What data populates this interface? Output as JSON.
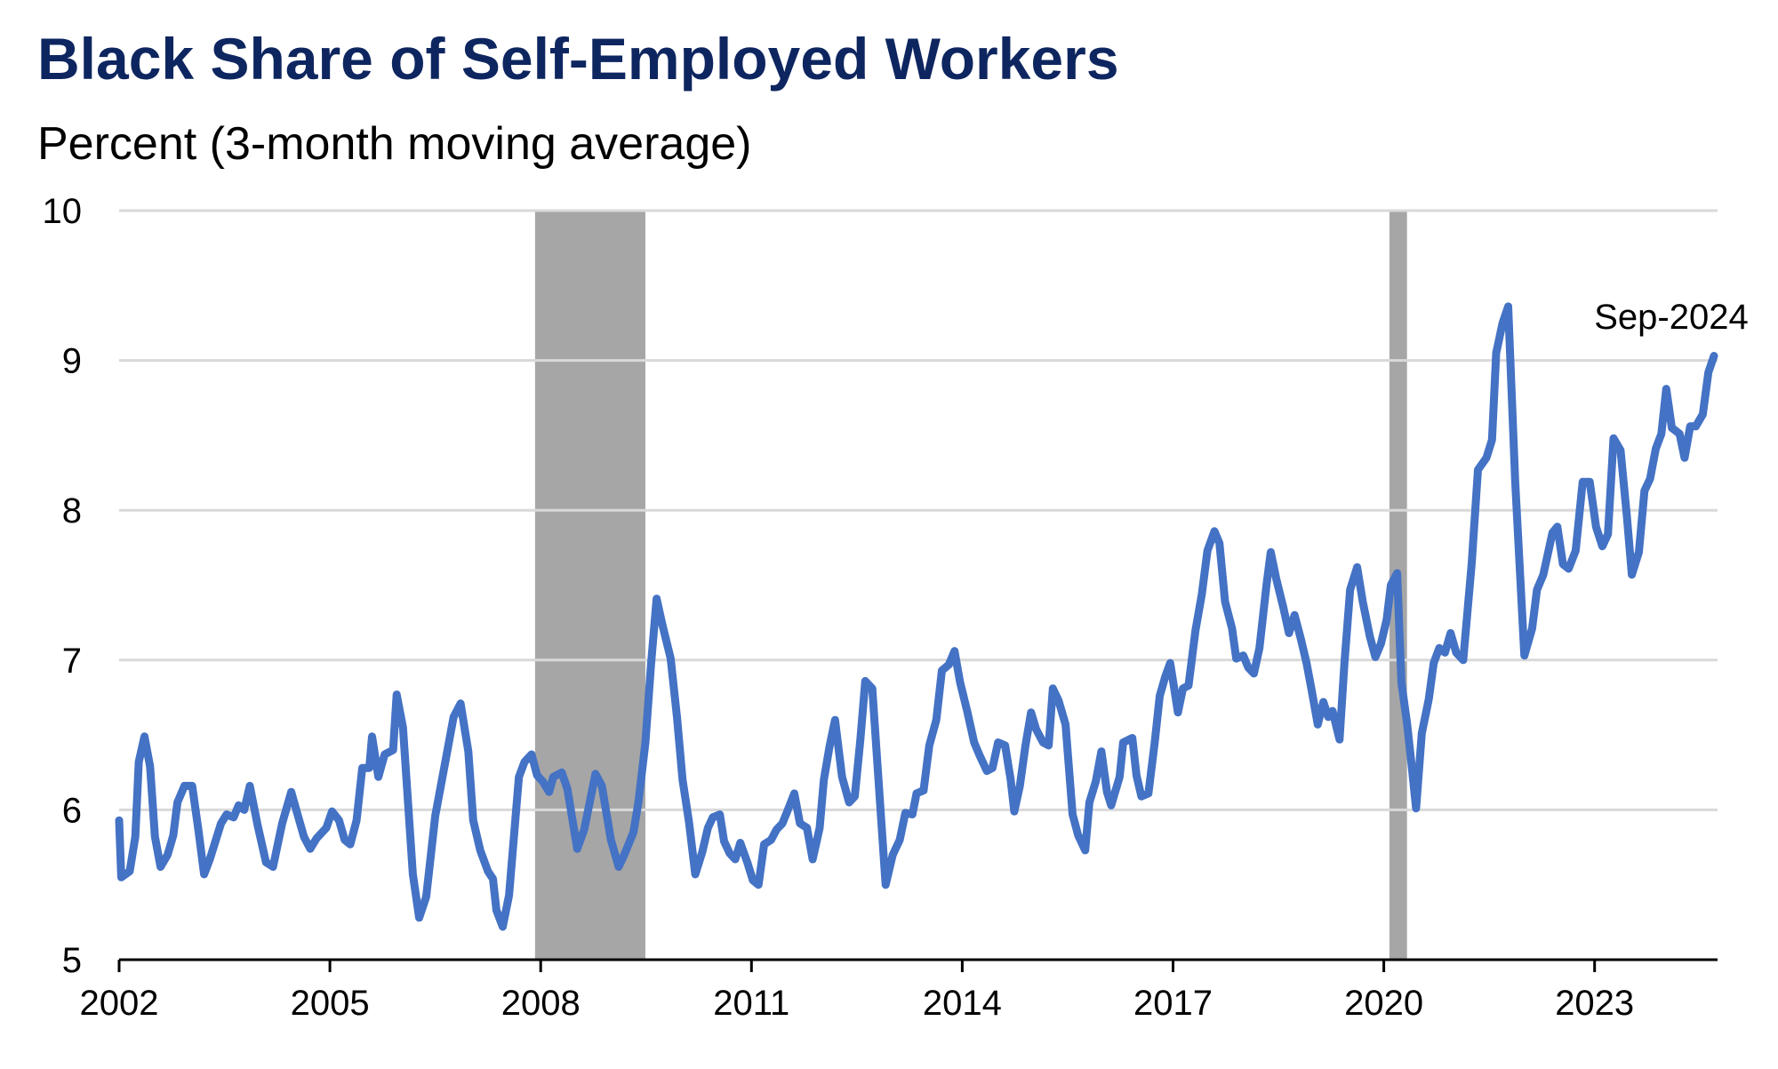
{
  "chart_data": {
    "type": "line",
    "title": "Black Share of Self-Employed Workers",
    "subtitle": "Percent (3-month moving average)",
    "xlabel": "",
    "ylabel": "",
    "xlim": [
      2002,
      2024.75
    ],
    "ylim": [
      5,
      10
    ],
    "x_ticks": [
      "2002",
      "2005",
      "2008",
      "2011",
      "2014",
      "2017",
      "2020",
      "2023"
    ],
    "y_ticks": [
      "5",
      "6",
      "7",
      "8",
      "9",
      "10"
    ],
    "grid": "horizontal",
    "annotation": "Sep-2024",
    "colors": {
      "line": "#4472c4",
      "recession": "#a6a6a6",
      "grid": "#d9d9d9",
      "title": "#0e2660"
    },
    "recessions": [
      [
        2007.92,
        2009.49
      ],
      [
        2020.08,
        2020.33
      ]
    ],
    "series": [
      {
        "x": [
          2002.0,
          2002.03,
          2002.15,
          2002.23,
          2002.28,
          2002.36,
          2002.44,
          2002.51,
          2002.59,
          2002.69,
          2002.77,
          2002.83,
          2002.93,
          2003.04,
          2003.13,
          2003.21,
          2003.29,
          2003.45,
          2003.53,
          2003.63,
          2003.7,
          2003.78,
          2003.86,
          2003.97,
          2004.09,
          2004.19,
          2004.32,
          2004.45,
          2004.54,
          2004.63,
          2004.72,
          2004.81,
          2004.95,
          2005.03,
          2005.13,
          2005.21,
          2005.29,
          2005.38,
          2005.46,
          2005.56,
          2005.6,
          2005.69,
          2005.78,
          2005.9,
          2005.95,
          2006.04,
          2006.18,
          2006.27,
          2006.37,
          2006.5,
          2006.65,
          2006.76,
          2006.86,
          2006.97,
          2007.04,
          2007.14,
          2007.25,
          2007.32,
          2007.37,
          2007.46,
          2007.55,
          2007.69,
          2007.77,
          2007.87,
          2007.95,
          2008.03,
          2008.12,
          2008.18,
          2008.3,
          2008.38,
          2008.52,
          2008.62,
          2008.78,
          2008.87,
          2009.0,
          2009.11,
          2009.19,
          2009.32,
          2009.39,
          2009.49,
          2009.57,
          2009.65,
          2009.73,
          2009.85,
          2009.94,
          2010.02,
          2010.11,
          2010.2,
          2010.3,
          2010.38,
          2010.45,
          2010.55,
          2010.61,
          2010.69,
          2010.77,
          2010.84,
          2010.94,
          2011.02,
          2011.1,
          2011.18,
          2011.28,
          2011.36,
          2011.44,
          2011.51,
          2011.61,
          2011.69,
          2011.79,
          2011.87,
          2011.97,
          2012.03,
          2012.11,
          2012.19,
          2012.29,
          2012.39,
          2012.47,
          2012.55,
          2012.62,
          2012.72,
          2012.83,
          2012.91,
          2013.01,
          2013.11,
          2013.19,
          2013.29,
          2013.35,
          2013.45,
          2013.53,
          2013.63,
          2013.71,
          2013.81,
          2013.89,
          2013.97,
          2014.07,
          2014.17,
          2014.25,
          2014.35,
          2014.43,
          2014.51,
          2014.61,
          2014.69,
          2014.74,
          2014.82,
          2014.9,
          2014.98,
          2015.05,
          2015.15,
          2015.23,
          2015.29,
          2015.37,
          2015.47,
          2015.57,
          2015.65,
          2015.75,
          2015.81,
          2015.9,
          2015.98,
          2016.06,
          2016.12,
          2016.24,
          2016.29,
          2016.42,
          2016.48,
          2016.55,
          2016.65,
          2016.74,
          2016.81,
          2016.89,
          2016.96,
          2017.02,
          2017.07,
          2017.14,
          2017.22,
          2017.32,
          2017.41,
          2017.49,
          2017.59,
          2017.66,
          2017.74,
          2017.84,
          2017.9,
          2018.0,
          2018.07,
          2018.15,
          2018.23,
          2018.33,
          2018.39,
          2018.47,
          2018.57,
          2018.65,
          2018.73,
          2018.82,
          2018.9,
          2018.98,
          2019.06,
          2019.14,
          2019.21,
          2019.27,
          2019.37,
          2019.44,
          2019.52,
          2019.62,
          2019.7,
          2019.8,
          2019.88,
          2019.96,
          2020.04,
          2020.1,
          2020.19,
          2020.25,
          2020.33,
          2020.4,
          2020.46,
          2020.54,
          2020.64,
          2020.71,
          2020.79,
          2020.87,
          2020.95,
          2021.03,
          2021.13,
          2021.25,
          2021.34,
          2021.46,
          2021.54,
          2021.6,
          2021.69,
          2021.77,
          2021.87,
          2022.0,
          2022.11,
          2022.18,
          2022.27,
          2022.4,
          2022.47,
          2022.55,
          2022.63,
          2022.73,
          2022.83,
          2022.93,
          2023.02,
          2023.11,
          2023.19,
          2023.27,
          2023.37,
          2023.46,
          2023.53,
          2023.63,
          2023.71,
          2023.79,
          2023.87,
          2023.95,
          2024.02,
          2024.1,
          2024.21,
          2024.28,
          2024.36,
          2024.44,
          2024.54,
          2024.62,
          2024.7
        ],
        "y": [
          5.93,
          5.55,
          5.59,
          5.82,
          6.32,
          6.49,
          6.29,
          5.82,
          5.62,
          5.7,
          5.83,
          6.05,
          6.16,
          6.16,
          5.86,
          5.57,
          5.67,
          5.91,
          5.97,
          5.95,
          6.03,
          6.0,
          6.16,
          5.9,
          5.65,
          5.62,
          5.91,
          6.12,
          5.97,
          5.82,
          5.74,
          5.81,
          5.88,
          5.99,
          5.93,
          5.8,
          5.77,
          5.93,
          6.28,
          6.28,
          6.49,
          6.22,
          6.37,
          6.4,
          6.77,
          6.55,
          5.57,
          5.28,
          5.42,
          5.96,
          6.34,
          6.62,
          6.71,
          6.39,
          5.93,
          5.73,
          5.59,
          5.54,
          5.33,
          5.22,
          5.43,
          6.22,
          6.32,
          6.37,
          6.23,
          6.19,
          6.12,
          6.22,
          6.25,
          6.14,
          5.74,
          5.87,
          6.24,
          6.16,
          5.8,
          5.62,
          5.7,
          5.85,
          6.05,
          6.45,
          6.97,
          7.41,
          7.24,
          7.01,
          6.62,
          6.2,
          5.92,
          5.57,
          5.72,
          5.88,
          5.95,
          5.97,
          5.79,
          5.71,
          5.67,
          5.78,
          5.65,
          5.53,
          5.5,
          5.77,
          5.8,
          5.87,
          5.91,
          5.99,
          6.11,
          5.91,
          5.88,
          5.67,
          5.88,
          6.2,
          6.42,
          6.6,
          6.22,
          6.05,
          6.09,
          6.47,
          6.86,
          6.81,
          6.05,
          5.5,
          5.7,
          5.8,
          5.98,
          5.97,
          6.11,
          6.13,
          6.43,
          6.6,
          6.93,
          6.97,
          7.06,
          6.85,
          6.66,
          6.45,
          6.36,
          6.26,
          6.28,
          6.45,
          6.43,
          6.2,
          5.99,
          6.16,
          6.43,
          6.65,
          6.54,
          6.45,
          6.43,
          6.81,
          6.73,
          6.57,
          5.97,
          5.83,
          5.73,
          6.05,
          6.19,
          6.39,
          6.12,
          6.03,
          6.22,
          6.45,
          6.48,
          6.23,
          6.09,
          6.11,
          6.45,
          6.76,
          6.89,
          6.98,
          6.8,
          6.65,
          6.81,
          6.83,
          7.2,
          7.44,
          7.73,
          7.86,
          7.78,
          7.39,
          7.21,
          7.01,
          7.03,
          6.95,
          6.91,
          7.08,
          7.5,
          7.72,
          7.54,
          7.35,
          7.18,
          7.3,
          7.14,
          6.98,
          6.78,
          6.57,
          6.72,
          6.62,
          6.66,
          6.47,
          6.98,
          7.47,
          7.62,
          7.39,
          7.16,
          7.02,
          7.11,
          7.27,
          7.5,
          7.58,
          6.85,
          6.58,
          6.28,
          6.01,
          6.51,
          6.74,
          6.98,
          7.08,
          7.05,
          7.18,
          7.05,
          7.0,
          7.64,
          8.27,
          8.35,
          8.47,
          9.05,
          9.25,
          9.36,
          8.19,
          7.03,
          7.21,
          7.47,
          7.57,
          7.85,
          7.89,
          7.64,
          7.61,
          7.73,
          8.19,
          8.19,
          7.89,
          7.76,
          7.84,
          8.48,
          8.4,
          7.96,
          7.57,
          7.72,
          8.13,
          8.21,
          8.41,
          8.51,
          8.81,
          8.55,
          8.51,
          8.35,
          8.56,
          8.56,
          8.64,
          8.92,
          9.03
        ]
      }
    ]
  }
}
